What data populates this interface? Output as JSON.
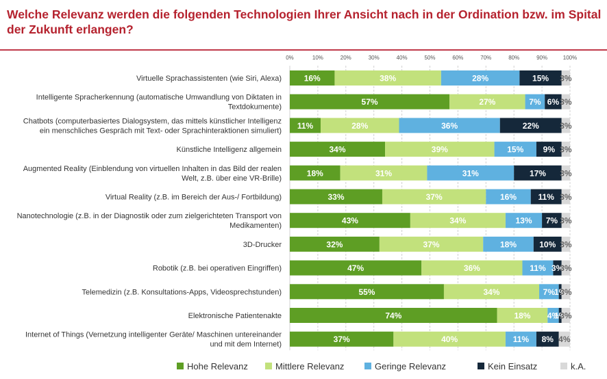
{
  "title": "Welche Relevanz werden die folgenden Technologien Ihrer Ansicht nach in der Ordination bzw. im Spital der Zukunft erlangen?",
  "chart_data": {
    "type": "bar",
    "orientation": "horizontal",
    "stacked": true,
    "title": "Welche Relevanz werden die folgenden Technologien Ihrer Ansicht nach in der Ordination bzw. im Spital der Zukunft erlangen?",
    "x_ticks": [
      "0%",
      "10%",
      "20%",
      "30%",
      "40%",
      "50%",
      "60%",
      "70%",
      "80%",
      "90%",
      "100%"
    ],
    "xlim": [
      0,
      100
    ],
    "grid": true,
    "legend_position": "bottom",
    "categories": [
      [
        "Virtuelle Sprachassistenten (wie Siri, Alexa)"
      ],
      [
        "Intelligente Spracherkennung (automatische Umwandlung von Diktaten in",
        "Textdokumente)"
      ],
      [
        "Chatbots (computerbasiertes Dialogsystem, das mittels künstlicher Intelligenz",
        "ein menschliches Gespräch mit Text- oder Sprachinteraktionen simuliert)"
      ],
      [
        "Künstliche Intelligenz allgemein"
      ],
      [
        "Augmented Reality (Einblendung von virtuellen Inhalten in das Bild der realen",
        "Welt, z.B. über eine VR-Brille)"
      ],
      [
        "Virtual Reality (z.B. im Bereich der Aus-/ Fortbildung)"
      ],
      [
        "Nanotechnologie (z.B. in der Diagnostik oder zum zielgerichteten Transport von",
        "Medikamenten)"
      ],
      [
        "3D-Drucker"
      ],
      [
        "Robotik (z.B. bei operativen Eingriffen)"
      ],
      [
        "Telemedizin (z.B. Konsultations-Apps, Videosprechstunden)"
      ],
      [
        "Elektronische Patientenakte"
      ],
      [
        "Internet of Things (Vernetzung intelligenter Geräte/ Maschinen untereinander",
        "und mit dem Internet)"
      ]
    ],
    "series": [
      {
        "name": "Hohe Relevanz",
        "color": "#5e9e24",
        "label_color": "#ffffff",
        "values": [
          16,
          57,
          11,
          34,
          18,
          33,
          43,
          32,
          47,
          55,
          74,
          37
        ]
      },
      {
        "name": "Mittlere Relevanz",
        "color": "#c2e17c",
        "label_color": "#ffffff",
        "values": [
          38,
          27,
          28,
          39,
          31,
          37,
          34,
          37,
          36,
          34,
          18,
          40
        ]
      },
      {
        "name": "Geringe  Relevanz",
        "color": "#5fb1e0",
        "label_color": "#ffffff",
        "values": [
          28,
          7,
          36,
          15,
          31,
          16,
          13,
          18,
          11,
          7,
          4,
          11
        ]
      },
      {
        "name": "Kein Einsatz",
        "color": "#15283a",
        "label_color": "#ffffff",
        "values": [
          15,
          6,
          22,
          9,
          17,
          11,
          7,
          10,
          3,
          1,
          1,
          8
        ]
      },
      {
        "name": "k.A.",
        "color": "#d9d9d9",
        "label_color": "#666666",
        "values": [
          3,
          3,
          3,
          3,
          3,
          3,
          3,
          3,
          3,
          3,
          3,
          4
        ]
      }
    ]
  }
}
